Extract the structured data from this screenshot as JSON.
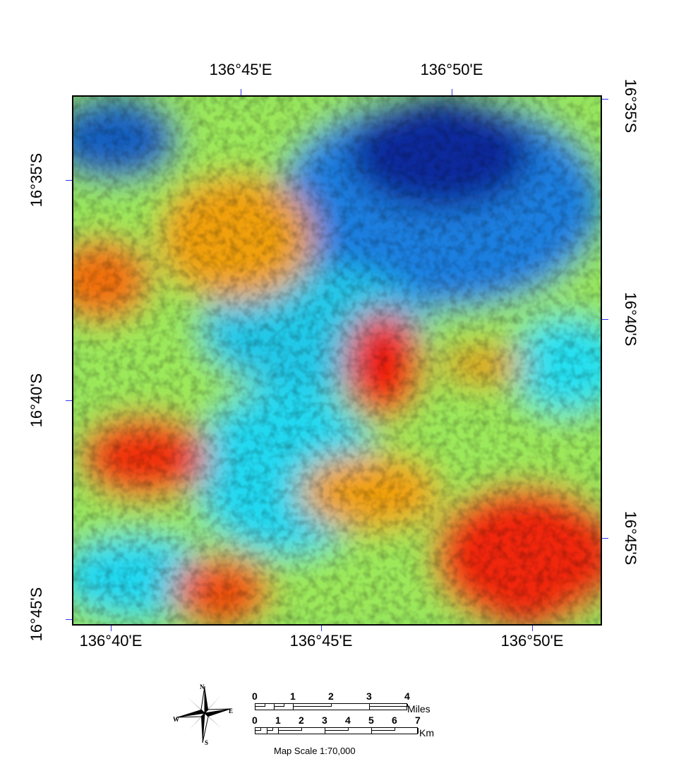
{
  "map": {
    "top_labels": [
      "136°45'E",
      "136°50'E"
    ],
    "bottom_labels": [
      "136°40'E",
      "136°45'E",
      "136°50'E"
    ],
    "left_labels": [
      "16°35'S",
      "16°40'S",
      "16°45'S"
    ],
    "right_labels": [
      "16°35'S",
      "16°40'S",
      "16°45'S"
    ],
    "colors": {
      "low": "#0a1a8c",
      "mid_low": "#1ee6f0",
      "mid": "#9be85a",
      "mid_high": "#f0a010",
      "high": "#f01a10"
    }
  },
  "compass": {
    "n": "N",
    "e": "E",
    "s": "S",
    "w": "W"
  },
  "scale": {
    "miles_ticks": [
      "0",
      "1",
      "2",
      "3",
      "4"
    ],
    "miles_unit": "Miles",
    "km_ticks": [
      "0",
      "1",
      "2",
      "3",
      "4",
      "5",
      "6",
      "7"
    ],
    "km_unit": "Km",
    "map_scale": "Map Scale 1:70,000"
  }
}
